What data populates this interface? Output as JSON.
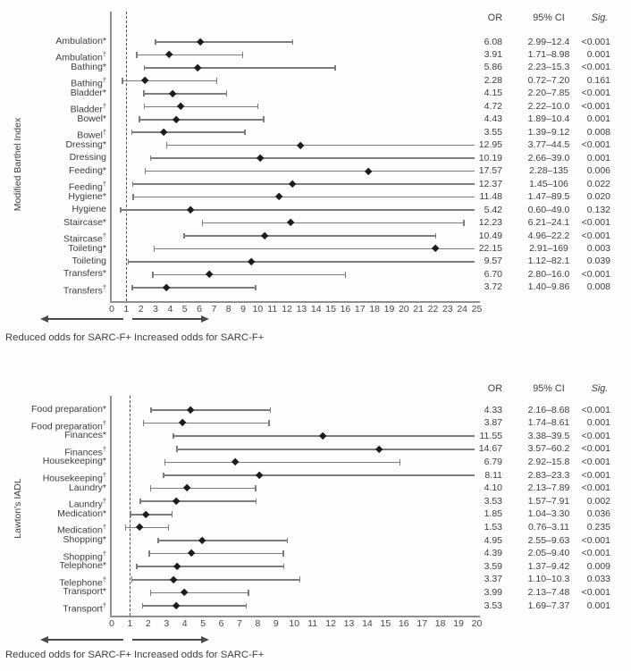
{
  "figure": {
    "background": "#fdfdfd",
    "text_color": "#3d3d3d",
    "whisker_color": "#7c7c7c",
    "marker_color": "#1c1c1c",
    "axis_color": "#8f8f8f",
    "arrow_color": "#4a4a4a"
  },
  "col_headers": {
    "or": "OR",
    "ci": "95% CI",
    "sig": "Sig."
  },
  "direction_labels": {
    "left": "Reduced odds for SARC-F+",
    "right": "Increased odds for SARC-F+"
  },
  "chart_data": [
    {
      "type": "forest",
      "group_title": "Modified Barthel Index",
      "x_axis": {
        "min": 0,
        "max": 25,
        "tick_step": 1,
        "reference_line": 1
      },
      "legend_position": "none",
      "rows": [
        {
          "label": "Ambulation*",
          "or": 6.08,
          "ci_low": 2.99,
          "ci_high": 12.4,
          "or_text": "6.08",
          "ci_text": "2.99–12.4",
          "sig_text": "<0.001"
        },
        {
          "label": "Ambulation†",
          "or": 3.91,
          "ci_low": 1.71,
          "ci_high": 8.98,
          "or_text": "3.91",
          "ci_text": "1.71–8.98",
          "sig_text": "0.001"
        },
        {
          "label": "Bathing*",
          "or": 5.86,
          "ci_low": 2.23,
          "ci_high": 15.3,
          "or_text": "5.86",
          "ci_text": "2.23–15.3",
          "sig_text": "<0.001"
        },
        {
          "label": "Bathing†",
          "or": 2.28,
          "ci_low": 0.72,
          "ci_high": 7.2,
          "or_text": "2.28",
          "ci_text": "0.72–7.20",
          "sig_text": "0.161"
        },
        {
          "label": "Bladder*",
          "or": 4.15,
          "ci_low": 2.2,
          "ci_high": 7.85,
          "or_text": "4.15",
          "ci_text": "2.20–7.85",
          "sig_text": "<0.001"
        },
        {
          "label": "Bladder†",
          "or": 4.72,
          "ci_low": 2.22,
          "ci_high": 10.0,
          "or_text": "4.72",
          "ci_text": "2.22–10.0",
          "sig_text": "<0.001"
        },
        {
          "label": "Bowel*",
          "or": 4.43,
          "ci_low": 1.89,
          "ci_high": 10.4,
          "or_text": "4.43",
          "ci_text": "1.89–10.4",
          "sig_text": "0.001"
        },
        {
          "label": "Bowel†",
          "or": 3.55,
          "ci_low": 1.39,
          "ci_high": 9.12,
          "or_text": "3.55",
          "ci_text": "1.39–9.12",
          "sig_text": "0.008"
        },
        {
          "label": "Dressing*",
          "or": 12.95,
          "ci_low": 3.77,
          "ci_high": 44.5,
          "or_text": "12.95",
          "ci_text": "3.77–44.5",
          "sig_text": "<0.001"
        },
        {
          "label": "Dressing",
          "or": 10.19,
          "ci_low": 2.66,
          "ci_high": 39.0,
          "or_text": "10.19",
          "ci_text": "2.66–39.0",
          "sig_text": "0.001"
        },
        {
          "label": "Feeding*",
          "or": 17.57,
          "ci_low": 2.28,
          "ci_high": 135,
          "or_text": "17.57",
          "ci_text": "2.28–135",
          "sig_text": "0.006"
        },
        {
          "label": "Feeding†",
          "or": 12.37,
          "ci_low": 1.45,
          "ci_high": 106,
          "or_text": "12.37",
          "ci_text": "1.45–106",
          "sig_text": "0.022"
        },
        {
          "label": "Hygiene*",
          "or": 11.48,
          "ci_low": 1.47,
          "ci_high": 89.5,
          "or_text": "11.48",
          "ci_text": "1.47–89.5",
          "sig_text": "0.020"
        },
        {
          "label": "Hygiene",
          "or": 5.42,
          "ci_low": 0.6,
          "ci_high": 49.0,
          "or_text": "5.42",
          "ci_text": "0.60–49.0",
          "sig_text": "0.132"
        },
        {
          "label": "Staircase*",
          "or": 12.23,
          "ci_low": 6.21,
          "ci_high": 24.1,
          "or_text": "12.23",
          "ci_text": "6.21–24.1",
          "sig_text": "<0.001"
        },
        {
          "label": "Staircase†",
          "or": 10.49,
          "ci_low": 4.96,
          "ci_high": 22.2,
          "or_text": "10.49",
          "ci_text": "4.96–22.2",
          "sig_text": "<0.001"
        },
        {
          "label": "Toileting*",
          "or": 22.15,
          "ci_low": 2.91,
          "ci_high": 169,
          "or_text": "22.15",
          "ci_text": "2.91–169",
          "sig_text": "0.003"
        },
        {
          "label": "Toileting",
          "or": 9.57,
          "ci_low": 1.12,
          "ci_high": 82.1,
          "or_text": "9.57",
          "ci_text": "1.12–82.1",
          "sig_text": "0.039"
        },
        {
          "label": "Transfers*",
          "or": 6.7,
          "ci_low": 2.8,
          "ci_high": 16.0,
          "or_text": "6.70",
          "ci_text": "2.80–16.0",
          "sig_text": "<0.001"
        },
        {
          "label": "Transfers†",
          "or": 3.72,
          "ci_low": 1.4,
          "ci_high": 9.86,
          "or_text": "3.72",
          "ci_text": "1.40–9.86",
          "sig_text": "0.008"
        }
      ]
    },
    {
      "type": "forest",
      "group_title": "Lawton's IADL",
      "x_axis": {
        "min": 0,
        "max": 20,
        "tick_step": 1,
        "reference_line": 1
      },
      "legend_position": "none",
      "rows": [
        {
          "label": "Food preparation*",
          "or": 4.33,
          "ci_low": 2.16,
          "ci_high": 8.68,
          "or_text": "4.33",
          "ci_text": "2.16–8.68",
          "sig_text": "<0.001"
        },
        {
          "label": "Food preparation†",
          "or": 3.87,
          "ci_low": 1.74,
          "ci_high": 8.61,
          "or_text": "3.87",
          "ci_text": "1.74–8.61",
          "sig_text": "0.001"
        },
        {
          "label": "Finances*",
          "or": 11.55,
          "ci_low": 3.38,
          "ci_high": 39.5,
          "or_text": "11.55",
          "ci_text": "3.38–39.5",
          "sig_text": "<0.001"
        },
        {
          "label": "Finances†",
          "or": 14.67,
          "ci_low": 3.57,
          "ci_high": 60.2,
          "or_text": "14.67",
          "ci_text": "3.57–60.2",
          "sig_text": "<0.001"
        },
        {
          "label": "Housekeeping*",
          "or": 6.79,
          "ci_low": 2.92,
          "ci_high": 15.8,
          "or_text": "6.79",
          "ci_text": "2.92–15.8",
          "sig_text": "<0.001"
        },
        {
          "label": "Housekeeping†",
          "or": 8.11,
          "ci_low": 2.83,
          "ci_high": 23.3,
          "or_text": "8.11",
          "ci_text": "2.83–23.3",
          "sig_text": "<0.001"
        },
        {
          "label": "Laundry*",
          "or": 4.1,
          "ci_low": 2.13,
          "ci_high": 7.89,
          "or_text": "4.10",
          "ci_text": "2.13–7.89",
          "sig_text": "<0.001"
        },
        {
          "label": "Laundry†",
          "or": 3.53,
          "ci_low": 1.57,
          "ci_high": 7.91,
          "or_text": "3.53",
          "ci_text": "1.57–7.91",
          "sig_text": "0.002"
        },
        {
          "label": "Medication*",
          "or": 1.85,
          "ci_low": 1.04,
          "ci_high": 3.3,
          "or_text": "1.85",
          "ci_text": "1.04–3.30",
          "sig_text": "0.036"
        },
        {
          "label": "Medication†",
          "or": 1.53,
          "ci_low": 0.76,
          "ci_high": 3.11,
          "or_text": "1.53",
          "ci_text": "0.76–3.11",
          "sig_text": "0.235"
        },
        {
          "label": "Shopping*",
          "or": 4.95,
          "ci_low": 2.55,
          "ci_high": 9.63,
          "or_text": "4.95",
          "ci_text": "2.55–9.63",
          "sig_text": "<0.001"
        },
        {
          "label": "Shopping†",
          "or": 4.39,
          "ci_low": 2.05,
          "ci_high": 9.4,
          "or_text": "4.39",
          "ci_text": "2.05–9.40",
          "sig_text": "<0.001"
        },
        {
          "label": "Telephone*",
          "or": 3.59,
          "ci_low": 1.37,
          "ci_high": 9.42,
          "or_text": "3.59",
          "ci_text": "1.37–9.42",
          "sig_text": "0.009"
        },
        {
          "label": "Telephone†",
          "or": 3.37,
          "ci_low": 1.1,
          "ci_high": 10.3,
          "or_text": "3.37",
          "ci_text": "1.10–10.3",
          "sig_text": "0.033"
        },
        {
          "label": "Transport*",
          "or": 3.99,
          "ci_low": 2.13,
          "ci_high": 7.48,
          "or_text": "3.99",
          "ci_text": "2.13–7.48",
          "sig_text": "<0.001"
        },
        {
          "label": "Transport†",
          "or": 3.53,
          "ci_low": 1.69,
          "ci_high": 7.37,
          "or_text": "3.53",
          "ci_text": "1.69–7.37",
          "sig_text": "0.001"
        }
      ]
    }
  ]
}
